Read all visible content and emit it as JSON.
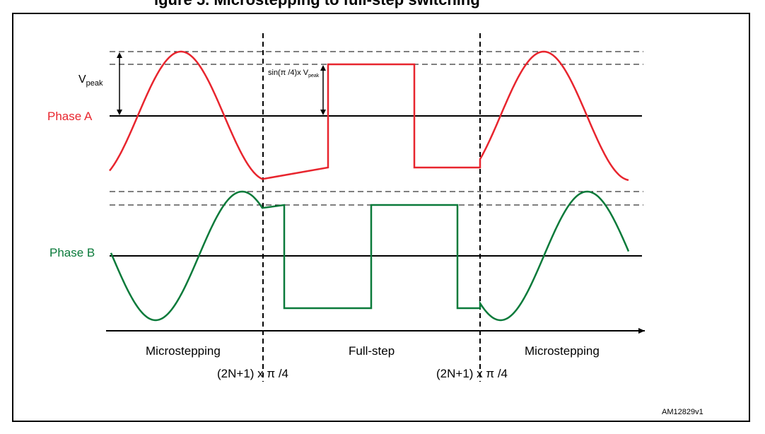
{
  "title_fragment": "igure 5. Microstepping to full-step switching",
  "labels": {
    "vpeak_main": "V",
    "vpeak_sub": "peak",
    "phase_a": "Phase A",
    "phase_b": "Phase B",
    "sin_main": "sin(π /4)x V",
    "sin_sub": "peak",
    "region_left": "Microstepping",
    "region_mid": "Full-step",
    "region_right": "Microstepping",
    "switch_left": "(2N+1) x π /4",
    "switch_right": "(2N+1) x π /4",
    "figure_id": "AM12829v1"
  },
  "colors": {
    "phase_a": "#e8252e",
    "phase_b": "#0a7a3a",
    "axis": "#000000"
  }
}
